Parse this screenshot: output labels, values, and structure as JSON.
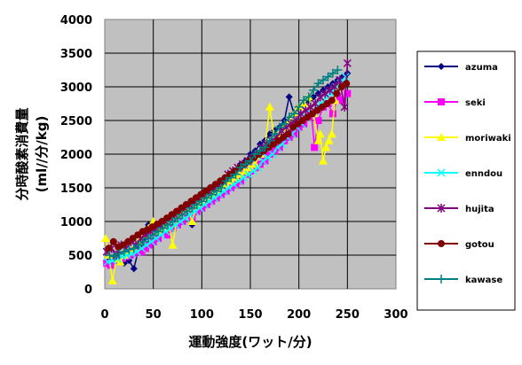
{
  "chart_data": {
    "type": "scatter",
    "title": "",
    "xlabel": "運動強度(ワット/分)",
    "ylabel_line1": "分時酸素消費量",
    "ylabel_line2": "(ml//分/kg)",
    "xlim": [
      0,
      300
    ],
    "ylim": [
      0,
      4000
    ],
    "x_ticks": [
      "0",
      "50",
      "100",
      "150",
      "200",
      "250",
      "300"
    ],
    "y_ticks": [
      "0",
      "500",
      "1000",
      "1500",
      "2000",
      "2500",
      "3000",
      "3500",
      "4000"
    ],
    "grid": true,
    "plot_background": "#c0c0c0",
    "legend_position": "right",
    "series": [
      {
        "name": "azuma",
        "color": "#000080",
        "marker": "diamond",
        "x": [
          5,
          10,
          15,
          20,
          25,
          30,
          35,
          40,
          45,
          50,
          55,
          60,
          65,
          70,
          75,
          80,
          85,
          90,
          95,
          100,
          105,
          110,
          115,
          120,
          125,
          130,
          135,
          140,
          145,
          150,
          155,
          160,
          165,
          170,
          175,
          180,
          185,
          190,
          195,
          200,
          205,
          210,
          215,
          220,
          225,
          230,
          235,
          240,
          245,
          250
        ],
        "y": [
          450,
          480,
          520,
          380,
          420,
          300,
          600,
          650,
          950,
          900,
          820,
          980,
          1050,
          1100,
          1000,
          1200,
          1150,
          950,
          1250,
          1300,
          1350,
          1400,
          1500,
          1550,
          1600,
          1700,
          1750,
          1850,
          1900,
          2000,
          2050,
          2150,
          2200,
          2300,
          2350,
          2400,
          2500,
          2850,
          2600,
          2700,
          2750,
          2800,
          2850,
          2900,
          2950,
          3000,
          3050,
          3100,
          3150,
          3200
        ]
      },
      {
        "name": "seki",
        "color": "#ff00ff",
        "marker": "square",
        "x": [
          2,
          6,
          10,
          14,
          18,
          22,
          26,
          30,
          34,
          38,
          42,
          46,
          50,
          55,
          60,
          65,
          70,
          75,
          80,
          85,
          90,
          95,
          100,
          105,
          110,
          115,
          120,
          125,
          130,
          135,
          140,
          145,
          150,
          155,
          160,
          165,
          170,
          175,
          180,
          185,
          190,
          195,
          200,
          205,
          210,
          213,
          216,
          220,
          225,
          230,
          235,
          240,
          245,
          250
        ],
        "y": [
          380,
          350,
          420,
          400,
          450,
          480,
          500,
          520,
          560,
          550,
          600,
          650,
          700,
          750,
          850,
          800,
          900,
          950,
          1000,
          1100,
          1050,
          1150,
          1200,
          1250,
          1300,
          1350,
          1400,
          1450,
          1500,
          1550,
          1600,
          1700,
          1750,
          1800,
          1850,
          1900,
          2000,
          2050,
          2100,
          2200,
          2250,
          2300,
          2400,
          2450,
          2550,
          2600,
          2100,
          2500,
          2700,
          2750,
          2600,
          2850,
          2800,
          2900
        ]
      },
      {
        "name": "moriwaki",
        "color": "#ffff00",
        "marker": "triangle",
        "x": [
          1,
          4,
          8,
          12,
          16,
          20,
          25,
          30,
          35,
          40,
          45,
          50,
          55,
          60,
          65,
          70,
          75,
          80,
          85,
          90,
          95,
          100,
          105,
          110,
          115,
          120,
          125,
          130,
          135,
          140,
          145,
          150,
          155,
          160,
          165,
          170,
          175,
          180,
          185,
          190,
          195,
          200,
          205,
          210,
          215,
          220,
          222,
          225,
          228,
          231,
          234,
          237,
          240
        ],
        "y": [
          750,
          500,
          120,
          450,
          400,
          500,
          550,
          600,
          700,
          800,
          900,
          1000,
          850,
          900,
          1050,
          650,
          1100,
          1150,
          1200,
          1000,
          1250,
          1300,
          1350,
          1400,
          1450,
          1500,
          1550,
          1600,
          1650,
          1700,
          1750,
          1800,
          1850,
          2000,
          2100,
          2700,
          2200,
          2300,
          2400,
          2500,
          2600,
          2700,
          2750,
          2850,
          2600,
          2200,
          2300,
          1900,
          2100,
          2200,
          2300,
          2800,
          3000
        ]
      },
      {
        "name": "enndou",
        "color": "#00ffff",
        "marker": "x",
        "x": [
          3,
          8,
          13,
          18,
          23,
          28,
          33,
          38,
          43,
          48,
          53,
          58,
          63,
          68,
          73,
          78,
          83,
          88,
          93,
          98,
          103,
          108,
          113,
          118,
          123,
          128,
          133,
          138,
          143,
          148,
          153,
          158,
          163,
          168,
          173,
          178,
          183,
          188,
          193,
          198,
          203,
          208,
          213,
          218,
          223,
          228,
          233,
          238,
          243,
          248
        ],
        "y": [
          400,
          420,
          450,
          480,
          500,
          520,
          550,
          600,
          650,
          700,
          750,
          800,
          850,
          900,
          950,
          1000,
          1050,
          1100,
          1150,
          1200,
          1250,
          1300,
          1350,
          1400,
          1450,
          1500,
          1550,
          1600,
          1650,
          1700,
          1750,
          1800,
          1900,
          1950,
          2000,
          2100,
          2150,
          2250,
          2300,
          2400,
          2450,
          2550,
          2600,
          2700,
          2750,
          2850,
          2900,
          3000,
          3050,
          3150
        ]
      },
      {
        "name": "hujita",
        "color": "#800080",
        "marker": "star",
        "x": [
          2,
          7,
          12,
          17,
          22,
          27,
          32,
          37,
          42,
          47,
          52,
          57,
          62,
          67,
          72,
          77,
          82,
          87,
          92,
          97,
          102,
          107,
          112,
          117,
          122,
          127,
          132,
          137,
          142,
          147,
          152,
          157,
          162,
          167,
          172,
          177,
          182,
          187,
          192,
          197,
          202,
          207,
          212,
          217,
          222,
          227,
          232,
          237,
          242,
          247,
          250
        ],
        "y": [
          550,
          600,
          500,
          650,
          600,
          700,
          650,
          750,
          800,
          850,
          900,
          950,
          1000,
          1050,
          1100,
          1150,
          1200,
          1250,
          1300,
          1350,
          1400,
          1450,
          1500,
          1550,
          1600,
          1700,
          1750,
          1800,
          1850,
          1900,
          1950,
          2000,
          2100,
          2150,
          2200,
          2250,
          2350,
          2400,
          2450,
          2500,
          2600,
          2650,
          2700,
          2750,
          2850,
          2900,
          2950,
          3000,
          3100,
          2700,
          3350
        ]
      },
      {
        "name": "gotou",
        "color": "#800000",
        "marker": "circle",
        "x": [
          4,
          9,
          14,
          19,
          24,
          29,
          34,
          39,
          44,
          49,
          54,
          59,
          64,
          69,
          74,
          79,
          84,
          89,
          94,
          99,
          104,
          109,
          114,
          119,
          124,
          129,
          134,
          139,
          144,
          149,
          154,
          159,
          164,
          169,
          174,
          179,
          184,
          189,
          194,
          199,
          204,
          209,
          214,
          219,
          224,
          229,
          234,
          239,
          244,
          249
        ],
        "y": [
          600,
          700,
          620,
          650,
          700,
          750,
          800,
          850,
          880,
          920,
          960,
          1000,
          1050,
          1100,
          1150,
          1200,
          1250,
          1300,
          1350,
          1400,
          1450,
          1500,
          1550,
          1600,
          1650,
          1700,
          1750,
          1800,
          1850,
          1900,
          1950,
          2000,
          2050,
          2100,
          2150,
          2200,
          2250,
          2300,
          2400,
          2450,
          2500,
          2550,
          2600,
          2650,
          2700,
          2750,
          2800,
          2900,
          3000,
          3050
        ]
      },
      {
        "name": "kawase",
        "color": "#008080",
        "marker": "plus",
        "x": [
          5,
          10,
          15,
          20,
          25,
          30,
          35,
          40,
          45,
          50,
          55,
          60,
          65,
          70,
          75,
          80,
          85,
          90,
          95,
          100,
          105,
          110,
          115,
          120,
          125,
          130,
          135,
          140,
          145,
          150,
          155,
          160,
          165,
          170,
          175,
          180,
          185,
          190,
          195,
          200,
          205,
          210,
          215,
          220,
          225,
          230,
          235,
          240
        ],
        "y": [
          500,
          480,
          520,
          550,
          580,
          600,
          650,
          700,
          750,
          800,
          850,
          900,
          950,
          1000,
          1050,
          1100,
          1150,
          1200,
          1250,
          1300,
          1350,
          1400,
          1450,
          1500,
          1600,
          1650,
          1700,
          1800,
          1850,
          1900,
          2000,
          2050,
          2100,
          2200,
          2300,
          2400,
          2450,
          2550,
          2600,
          2700,
          2800,
          2850,
          2950,
          3050,
          3100,
          3150,
          3200,
          3250
        ]
      }
    ]
  }
}
